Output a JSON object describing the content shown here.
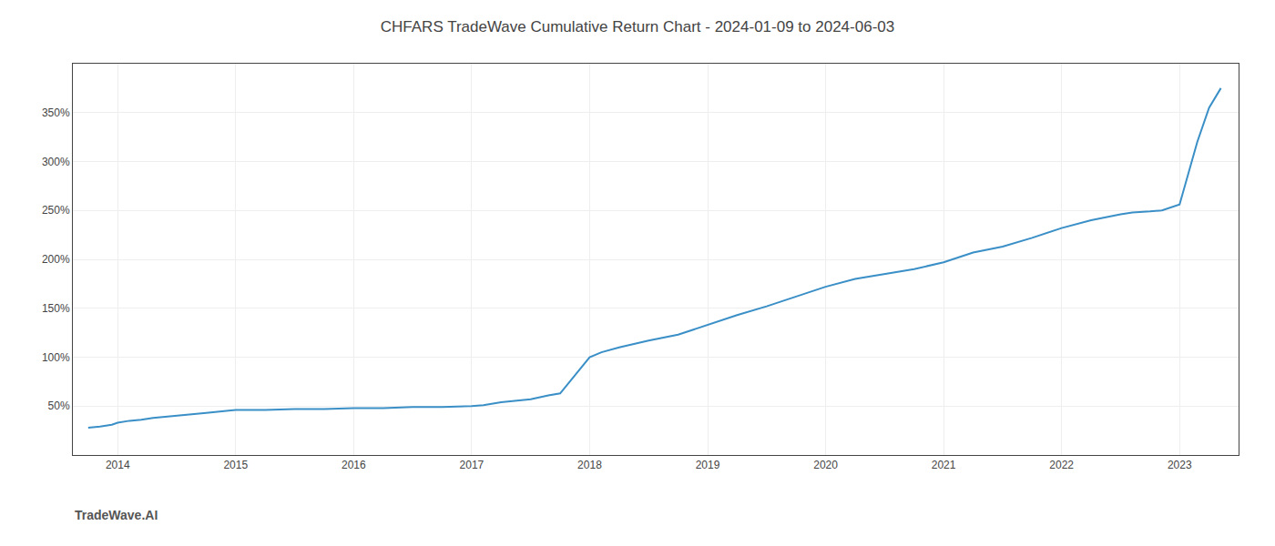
{
  "chart_data": {
    "type": "line",
    "title": "CHFARS TradeWave Cumulative Return Chart - 2024-01-09 to 2024-06-03",
    "annotations": [
      "TradeWave.AI"
    ],
    "x": [
      2013.75,
      2013.85,
      2013.95,
      2014.0,
      2014.1,
      2014.2,
      2014.3,
      2014.5,
      2014.75,
      2015.0,
      2015.25,
      2015.5,
      2015.75,
      2016.0,
      2016.25,
      2016.5,
      2016.75,
      2017.0,
      2017.1,
      2017.25,
      2017.5,
      2017.65,
      2017.75,
      2018.0,
      2018.1,
      2018.25,
      2018.5,
      2018.75,
      2019.0,
      2019.25,
      2019.5,
      2019.75,
      2020.0,
      2020.25,
      2020.5,
      2020.75,
      2021.0,
      2021.25,
      2021.5,
      2021.75,
      2022.0,
      2022.25,
      2022.5,
      2022.6,
      2022.75,
      2022.85,
      2023.0,
      2023.08,
      2023.15,
      2023.25,
      2023.35
    ],
    "values": [
      28,
      29,
      31,
      33,
      35,
      36,
      38,
      40,
      43,
      46,
      46,
      47,
      47,
      48,
      48,
      49,
      49,
      50,
      51,
      54,
      57,
      61,
      63,
      100,
      105,
      110,
      117,
      123,
      133,
      143,
      152,
      162,
      172,
      180,
      185,
      190,
      197,
      207,
      213,
      222,
      232,
      240,
      246,
      248,
      249,
      250,
      256,
      290,
      320,
      355,
      375
    ],
    "color": "#3a8fc7",
    "xlim": [
      2013.62,
      2023.5
    ],
    "ylim": [
      0,
      400
    ],
    "xticks": [
      2014,
      2015,
      2016,
      2017,
      2018,
      2019,
      2020,
      2021,
      2022,
      2023
    ],
    "yticks": [
      {
        "value": 50,
        "label": "50%"
      },
      {
        "value": 100,
        "label": "100%"
      },
      {
        "value": 150,
        "label": "150%"
      },
      {
        "value": 200,
        "label": "200%"
      },
      {
        "value": 250,
        "label": "250%"
      },
      {
        "value": 300,
        "label": "300%"
      },
      {
        "value": 350,
        "label": "350%"
      }
    ],
    "grid": true
  }
}
